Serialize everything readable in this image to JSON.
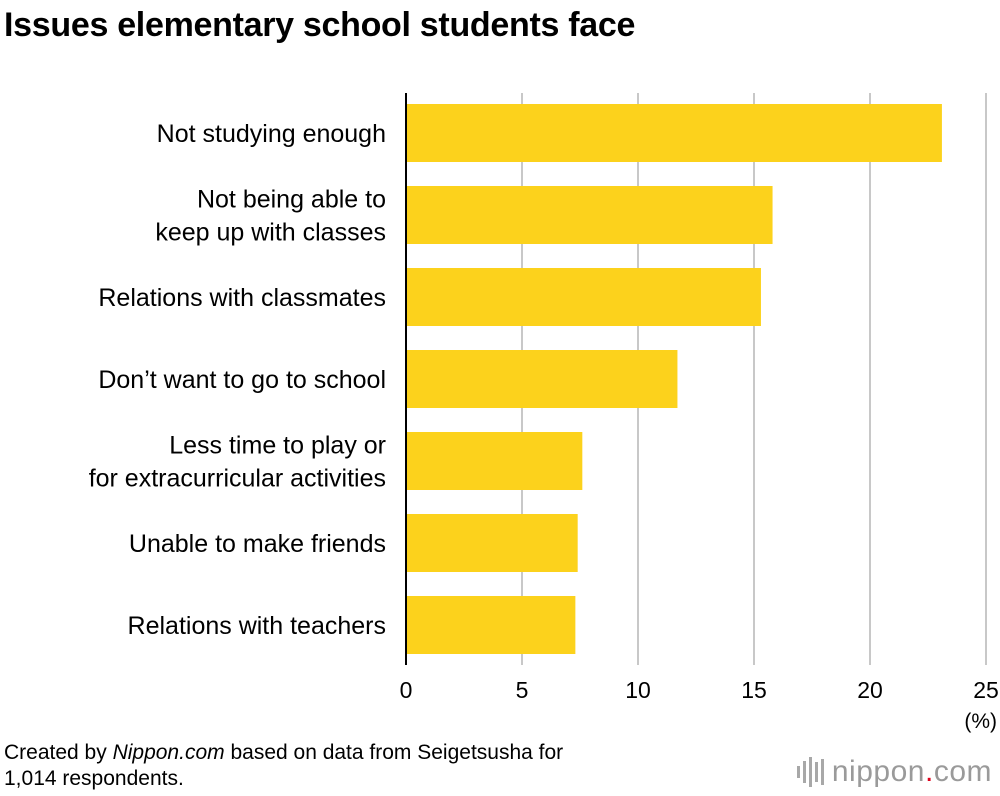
{
  "chart_data": {
    "type": "bar",
    "orientation": "horizontal",
    "title": "Issues elementary school students face",
    "categories": [
      [
        "Not studying enough"
      ],
      [
        "Not being able to",
        "keep up with classes"
      ],
      [
        "Relations with classmates"
      ],
      [
        "Don’t want to go to school"
      ],
      [
        "Less time to play or",
        "for extracurricular activities"
      ],
      [
        "Unable to make friends"
      ],
      [
        "Relations with teachers"
      ]
    ],
    "values": [
      23.1,
      15.8,
      15.3,
      11.7,
      7.6,
      7.4,
      7.3
    ],
    "xlim": [
      0,
      25
    ],
    "xticks": [
      "0",
      "5",
      "10",
      "15",
      "20",
      "25"
    ],
    "unit": "(%)",
    "grid": true,
    "bar_color": "#fcd21c",
    "grid_color": "#c8c8c8"
  },
  "footnote": {
    "prefix": "Created by ",
    "source": "Nippon.com",
    "suffix": " based on data from Seigetsusha for",
    "line2": "1,014 respondents."
  },
  "logo": {
    "name": "nippon",
    "dot": ".",
    "tld": "com",
    "accent_color": "#e0001b"
  }
}
